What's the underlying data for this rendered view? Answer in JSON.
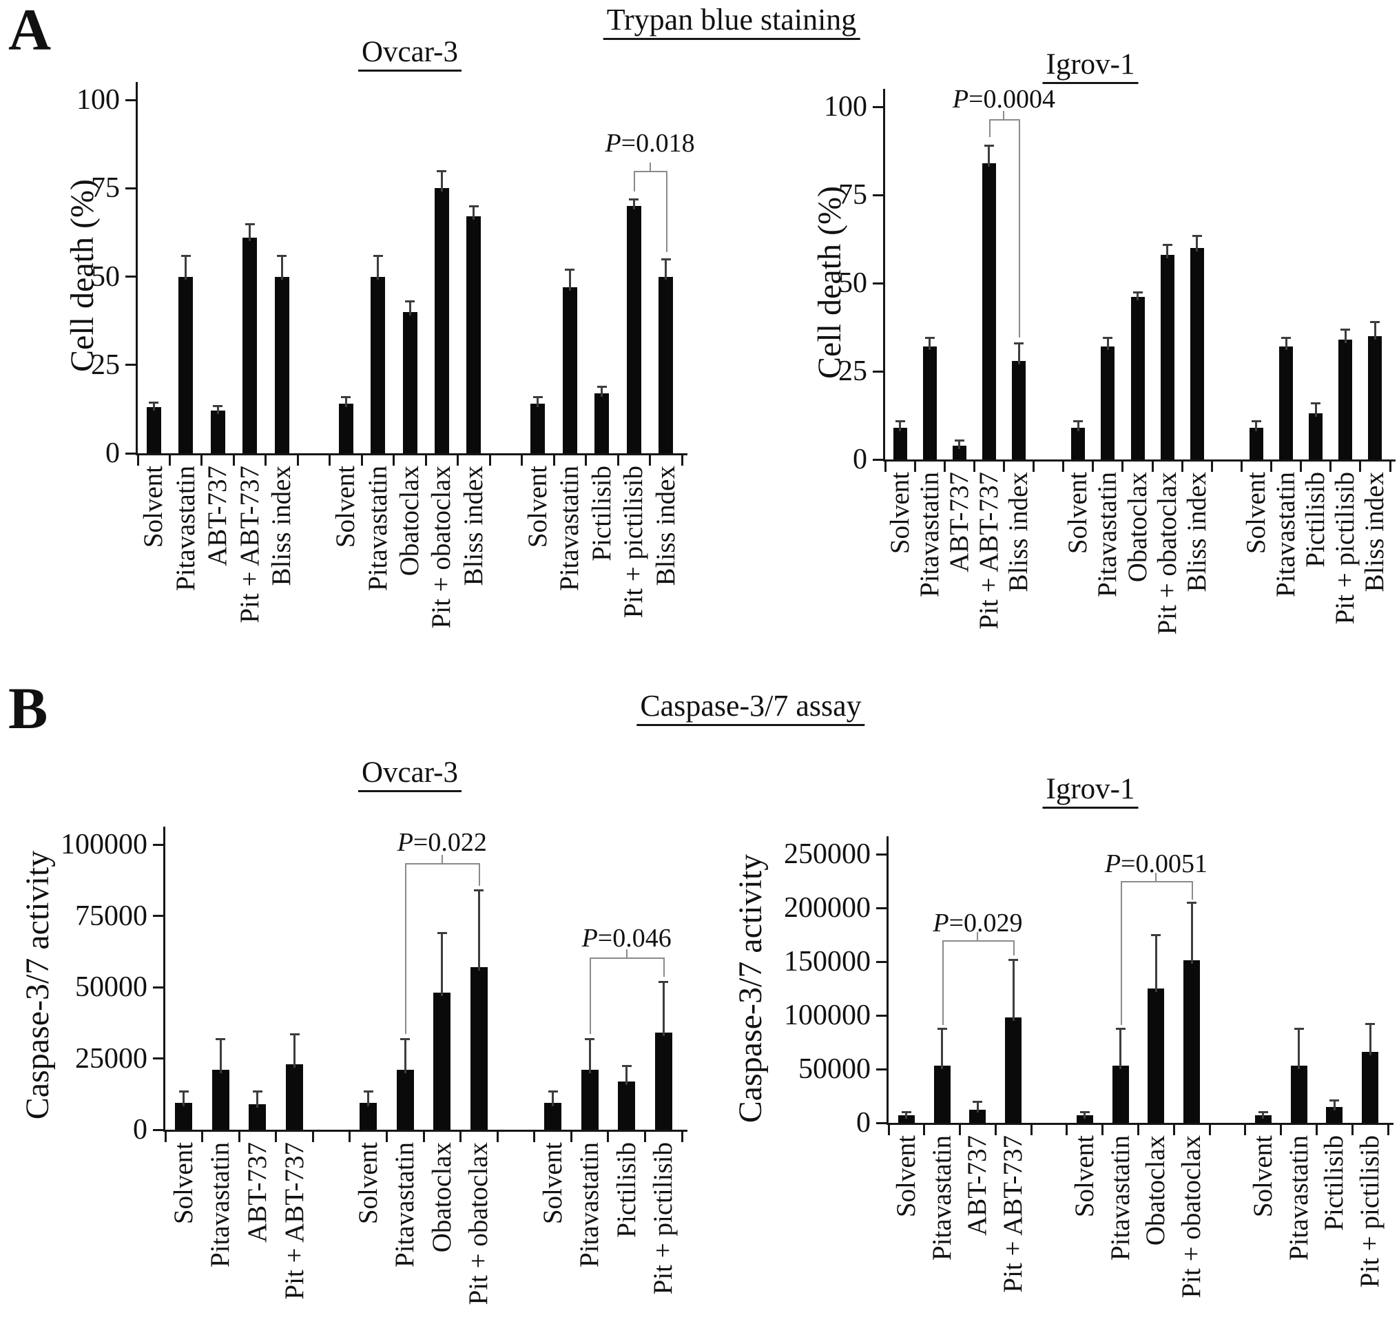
{
  "figure": {
    "panel_a_label": "A",
    "panel_a_header": "Trypan blue staining",
    "panel_b_label": "B",
    "panel_b_header": "Caspase-3/7 assay"
  },
  "chart_data": [
    {
      "id": "a1",
      "panel": "A",
      "type": "bar",
      "title": "Ovcar-3",
      "ylabel": "Cell death (%)",
      "ylim": [
        0,
        100
      ],
      "yticks": [
        0,
        25,
        50,
        75,
        100
      ],
      "grid": false,
      "bar_color": "#0a0a0a",
      "groups": [
        {
          "categories": [
            "Solvent",
            "Pitavastatin",
            "ABT-737",
            "Pit + ABT-737",
            "Bliss index"
          ],
          "values": [
            13,
            50,
            12,
            61,
            50
          ],
          "errors": [
            1.5,
            6,
            1.5,
            4,
            6
          ]
        },
        {
          "categories": [
            "Solvent",
            "Pitavastatin",
            "Obatoclax",
            "Pit + obatoclax",
            "Bliss index"
          ],
          "values": [
            14,
            50,
            40,
            75,
            67
          ],
          "errors": [
            2,
            6,
            3,
            5,
            3
          ]
        },
        {
          "categories": [
            "Solvent",
            "Pitavastatin",
            "Pictilisib",
            "Pit + pictilisib",
            "Bliss index"
          ],
          "values": [
            14,
            47,
            17,
            70,
            50
          ],
          "errors": [
            2,
            5,
            2,
            2,
            5
          ]
        }
      ],
      "annotations": [
        {
          "text": "P=0.018",
          "group": 2,
          "bar_from": 3,
          "bar_to": 4,
          "line_level": 80,
          "label_level": 92,
          "arm_from_level": 74,
          "arm_to_level": 57
        }
      ]
    },
    {
      "id": "a2",
      "panel": "A",
      "type": "bar",
      "title": "Igrov-1",
      "ylabel": "Cell death (%)",
      "ylim": [
        0,
        100
      ],
      "yticks": [
        0,
        25,
        50,
        75,
        100
      ],
      "grid": false,
      "bar_color": "#0a0a0a",
      "groups": [
        {
          "categories": [
            "Solvent",
            "Pitavastatin",
            "ABT-737",
            "Pit + ABT-737",
            "Bliss index"
          ],
          "values": [
            9,
            32,
            4,
            84,
            28
          ],
          "errors": [
            2,
            2.5,
            1.5,
            5,
            5
          ]
        },
        {
          "categories": [
            "Solvent",
            "Pitavastatin",
            "Obatoclax",
            "Pit + obatoclax",
            "Bliss index"
          ],
          "values": [
            9,
            32,
            46,
            58,
            60
          ],
          "errors": [
            2,
            2.5,
            1.5,
            3,
            3.5
          ]
        },
        {
          "categories": [
            "Solvent",
            "Pitavastatin",
            "Pictilisib",
            "Pit + pictilisib",
            "Bliss index"
          ],
          "values": [
            9,
            32,
            13,
            34,
            35
          ],
          "errors": [
            2,
            2.5,
            3,
            3,
            4
          ]
        }
      ],
      "annotations": [
        {
          "text": "P=0.0004",
          "group": 0,
          "bar_from": 3,
          "bar_to": 4,
          "line_level": 96.5,
          "label_level": 106.5,
          "arm_from_level": 91.5,
          "arm_to_level": 34.5
        }
      ]
    },
    {
      "id": "b1",
      "panel": "B",
      "type": "bar",
      "title": "Ovcar-3",
      "ylabel": "Caspase-3/7 activity",
      "ylim": [
        0,
        100000
      ],
      "yticks": [
        0,
        25000,
        50000,
        75000,
        100000
      ],
      "grid": false,
      "bar_color": "#0a0a0a",
      "groups": [
        {
          "categories": [
            "Solvent",
            "Pitavastatin",
            "ABT-737",
            "Pit + ABT-737"
          ],
          "values": [
            9500,
            21000,
            9000,
            23000
          ],
          "errors": [
            4000,
            11000,
            4500,
            10500
          ]
        },
        {
          "categories": [
            "Solvent",
            "Pitavastatin",
            "Obatoclax",
            "Pit + obatoclax"
          ],
          "values": [
            9500,
            21000,
            48000,
            57000
          ],
          "errors": [
            4000,
            11000,
            21000,
            27000
          ]
        },
        {
          "categories": [
            "Solvent",
            "Pitavastatin",
            "Pictilisib",
            "Pit + pictilisib"
          ],
          "values": [
            9500,
            21000,
            17000,
            34000
          ],
          "errors": [
            4000,
            11000,
            5500,
            18000
          ]
        }
      ],
      "annotations": [
        {
          "text": "P=0.022",
          "group": 1,
          "bar_from": 1,
          "bar_to": 3,
          "line_level": 93500,
          "label_level": 106000,
          "arm_from_level": 33500,
          "arm_to_level": 85500
        },
        {
          "text": "P=0.046",
          "group": 2,
          "bar_from": 1,
          "bar_to": 3,
          "line_level": 60500,
          "label_level": 72500,
          "arm_from_level": 33500,
          "arm_to_level": 53500
        }
      ]
    },
    {
      "id": "b2",
      "panel": "B",
      "type": "bar",
      "title": "Igrov-1",
      "ylabel": "Caspase-3/7 activity",
      "ylim": [
        0,
        250000
      ],
      "yticks": [
        0,
        50000,
        100000,
        150000,
        200000,
        250000
      ],
      "grid": false,
      "bar_color": "#0a0a0a",
      "groups": [
        {
          "categories": [
            "Solvent",
            "Pitavastatin",
            "ABT-737",
            "Pit + ABT-737"
          ],
          "values": [
            7000,
            53000,
            12500,
            98000
          ],
          "errors": [
            3500,
            35000,
            7500,
            54000
          ]
        },
        {
          "categories": [
            "Solvent",
            "Pitavastatin",
            "Obatoclax",
            "Pit + obatoclax"
          ],
          "values": [
            7000,
            53000,
            125000,
            151000
          ],
          "errors": [
            3500,
            35000,
            50000,
            54000
          ]
        },
        {
          "categories": [
            "Solvent",
            "Pitavastatin",
            "Pictilisib",
            "Pit + pictilisib"
          ],
          "values": [
            7000,
            53000,
            15000,
            66000
          ],
          "errors": [
            3500,
            35000,
            6000,
            26000
          ]
        }
      ],
      "annotations": [
        {
          "text": "P=0.029",
          "group": 0,
          "bar_from": 1,
          "bar_to": 3,
          "line_level": 170000,
          "label_level": 200000,
          "arm_from_level": 91000,
          "arm_to_level": 156000
        },
        {
          "text": "P=0.0051",
          "group": 1,
          "bar_from": 1,
          "bar_to": 3,
          "line_level": 225000,
          "label_level": 255000,
          "arm_from_level": 91000,
          "arm_to_level": 208000
        }
      ]
    }
  ]
}
